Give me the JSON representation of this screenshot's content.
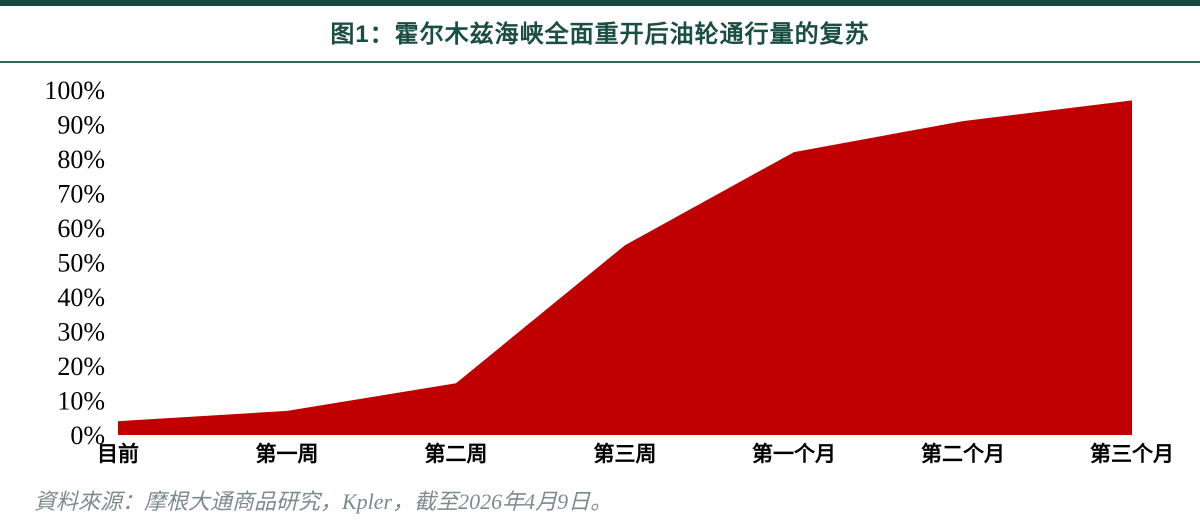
{
  "header": {
    "title": "图1：霍尔木兹海峡全面重开后油轮通行量的复苏"
  },
  "chart_data": {
    "type": "area",
    "title": "图1：霍尔木兹海峡全面重开后油轮通行量的复苏",
    "categories": [
      "目前",
      "第一周",
      "第二周",
      "第三周",
      "第一个月",
      "第二个月",
      "第三个月"
    ],
    "values": [
      4,
      7,
      15,
      55,
      82,
      91,
      97
    ],
    "unit": "%",
    "xlabel": "",
    "ylabel": "",
    "ylim": [
      0,
      100
    ],
    "ytick_step": 10,
    "ytick_labels": [
      "0%",
      "10%",
      "20%",
      "30%",
      "40%",
      "50%",
      "60%",
      "70%",
      "80%",
      "90%",
      "100%"
    ],
    "grid": false,
    "legend_position": "none",
    "fill_color": "#C00000"
  },
  "footer": {
    "source": "資料來源：摩根大通商品研究，Kpler，截至2026年4月9日。"
  },
  "colors": {
    "accent_teal": "#17493E",
    "rule_teal": "#2F6A5B",
    "title_teal": "#1B4E42",
    "area_red": "#C00000",
    "source_gray": "#7C8B8B",
    "tick_black": "#000000"
  }
}
